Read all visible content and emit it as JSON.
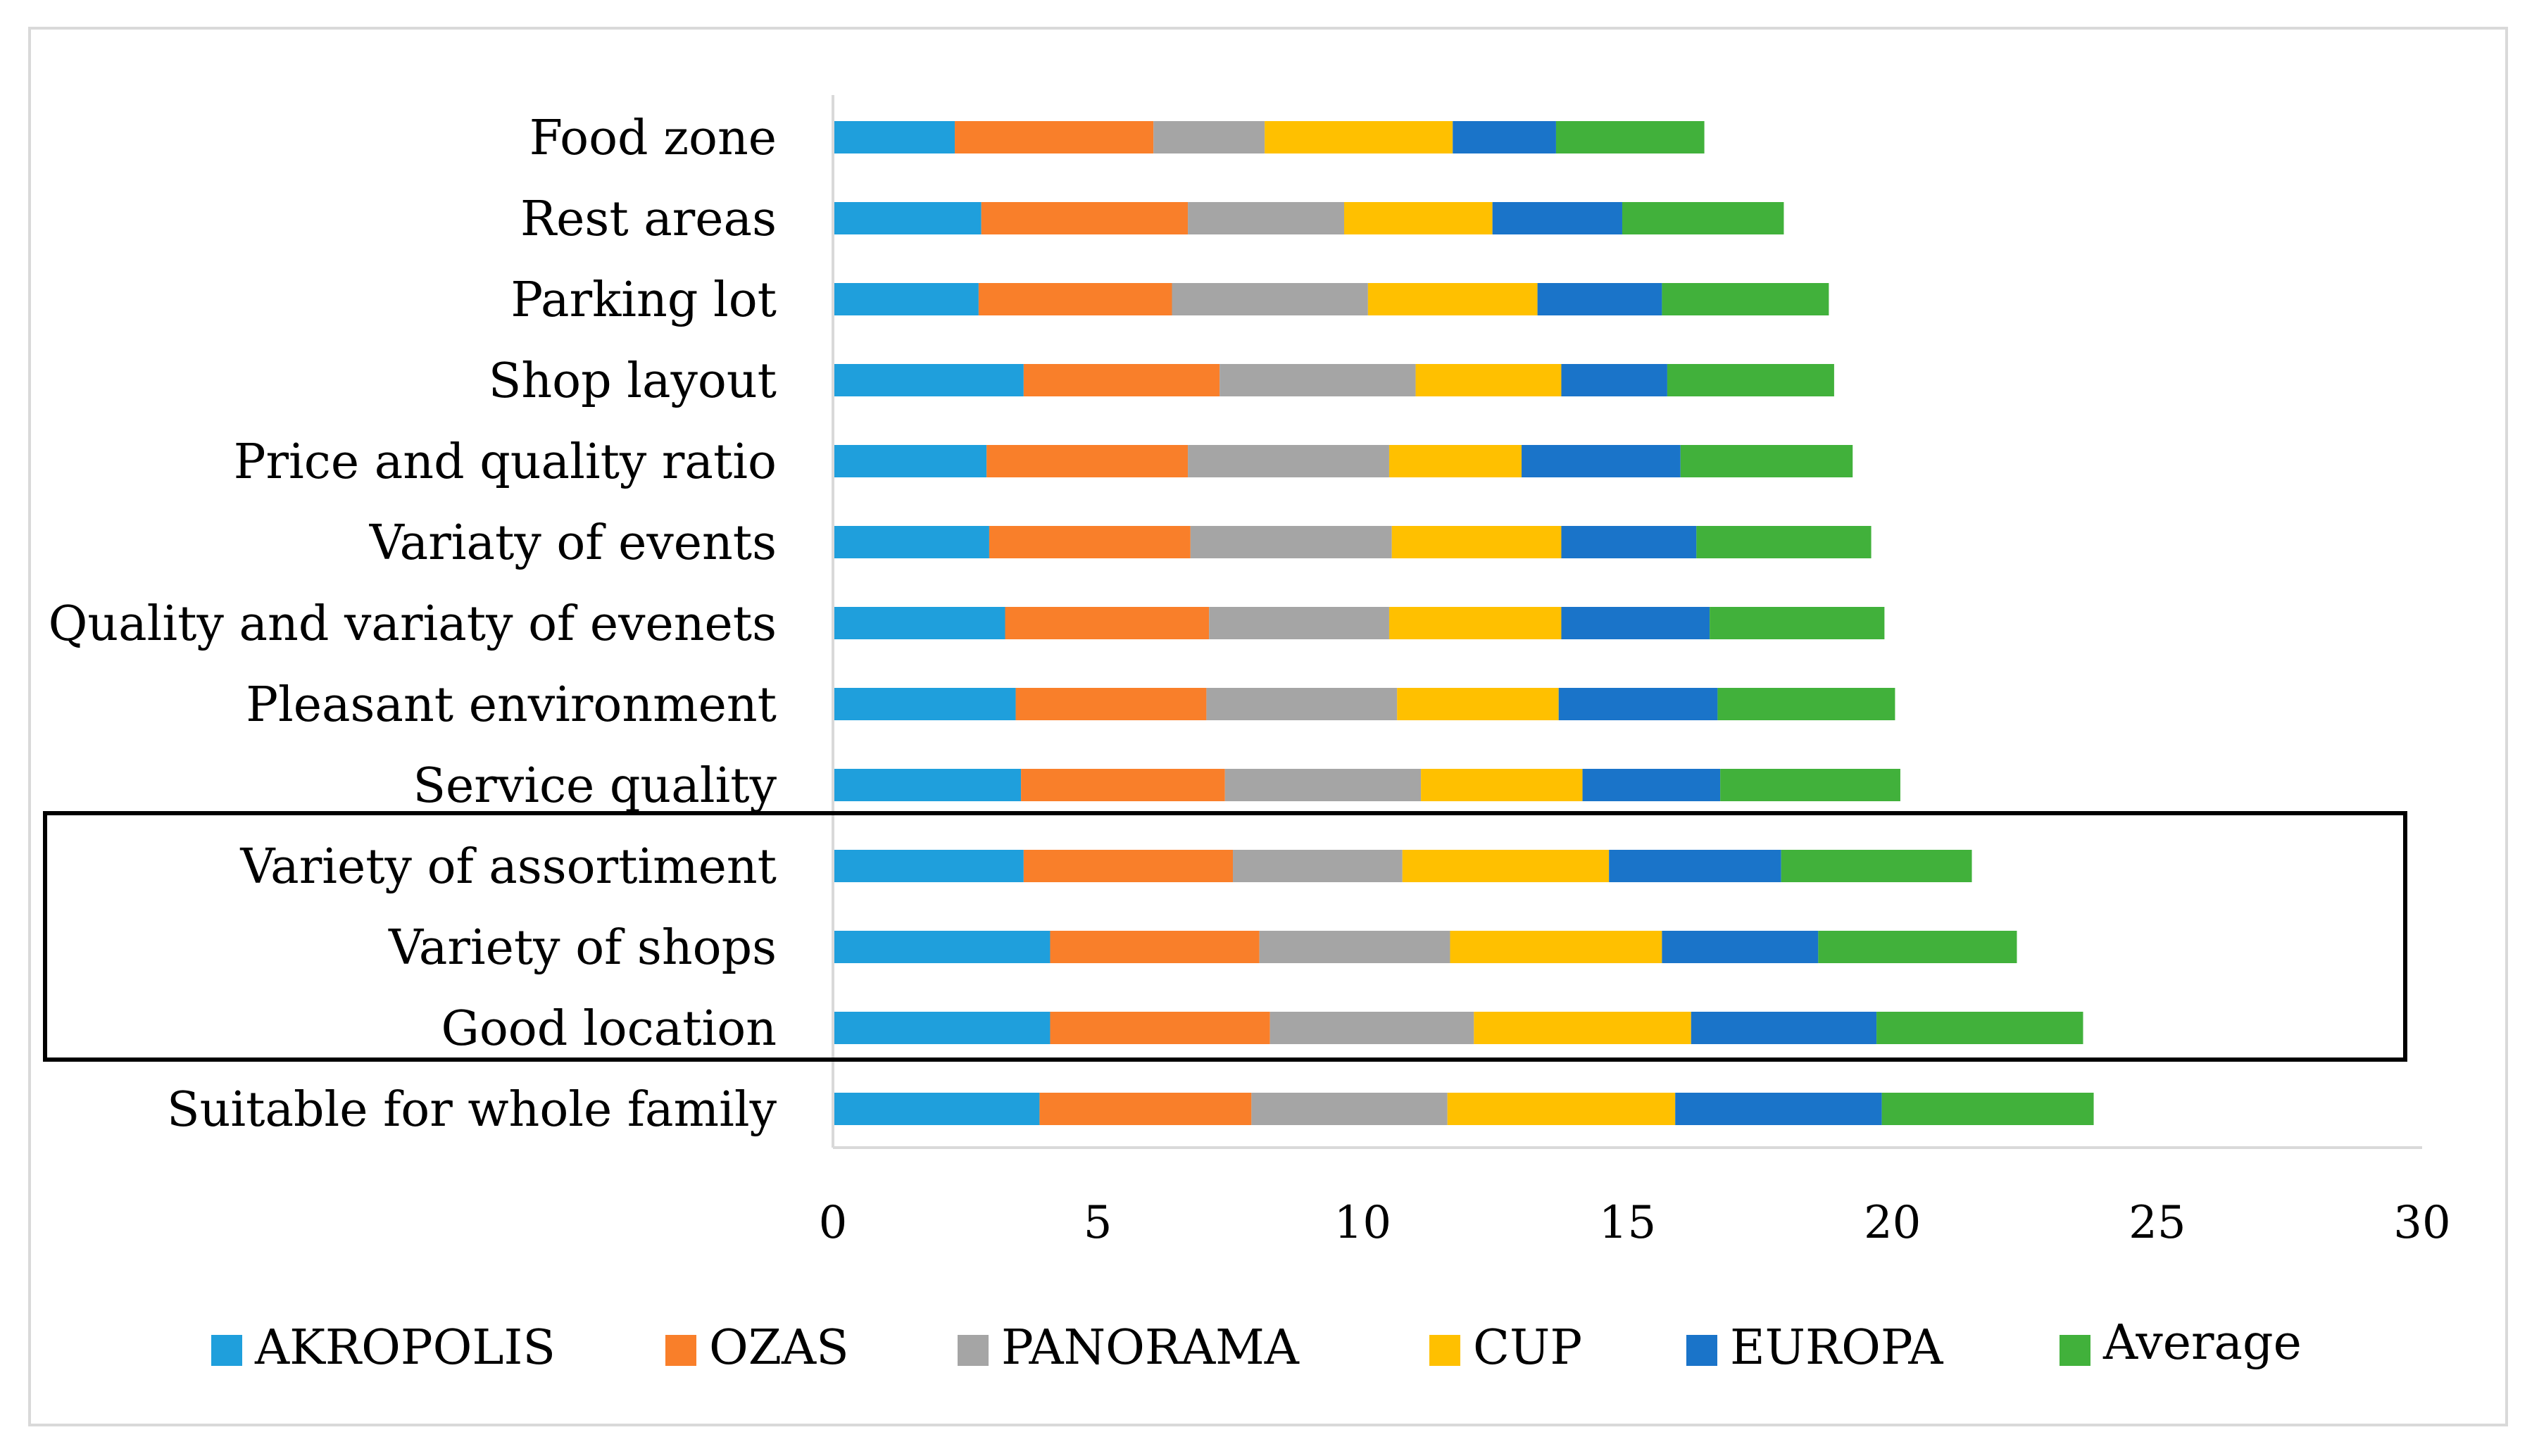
{
  "chart_data": {
    "type": "bar",
    "orientation": "horizontal",
    "stacked": true,
    "title": "",
    "xlabel": "",
    "ylabel": "",
    "xlim": [
      0,
      30
    ],
    "xticks": [
      0,
      5,
      10,
      15,
      20,
      25,
      30
    ],
    "grid": false,
    "legend_position": "bottom",
    "categories": [
      "Food zone",
      "Rest areas",
      "Parking lot",
      "Shop layout",
      "Price and quality ratio",
      "Variaty of events",
      "Quality and variaty of evenets",
      "Pleasant environment",
      "Service quality",
      "Variety of assortiment",
      "Variety of shops",
      "Good location",
      "Suitable for whole family"
    ],
    "highlighted_categories": [
      "Variety of assortiment",
      "Variety of shops",
      "Good location"
    ],
    "series": [
      {
        "name": "AKROPOLIS",
        "color": "#1f9fdc",
        "values": [
          2.3,
          2.8,
          2.75,
          3.6,
          2.9,
          2.95,
          3.25,
          3.45,
          3.55,
          3.6,
          4.1,
          4.1,
          3.9
        ]
      },
      {
        "name": "OZAS",
        "color": "#f97f2a",
        "values": [
          3.75,
          3.9,
          3.65,
          3.7,
          3.8,
          3.8,
          3.85,
          3.6,
          3.85,
          3.95,
          3.95,
          4.15,
          4.0
        ]
      },
      {
        "name": "PANORAMA",
        "color": "#a5a5a5",
        "values": [
          2.1,
          2.95,
          3.7,
          3.7,
          3.8,
          3.8,
          3.4,
          3.6,
          3.7,
          3.2,
          3.6,
          3.85,
          3.7
        ]
      },
      {
        "name": "CUP",
        "color": "#ffc000",
        "values": [
          3.55,
          2.8,
          3.2,
          2.75,
          2.5,
          3.2,
          3.25,
          3.05,
          3.05,
          3.9,
          4.0,
          4.1,
          4.3
        ]
      },
      {
        "name": "EUROPA",
        "color": "#1a74c9",
        "values": [
          1.95,
          2.45,
          2.35,
          2.0,
          3.0,
          2.55,
          2.8,
          3.0,
          2.6,
          3.25,
          2.95,
          3.5,
          3.9
        ]
      },
      {
        "name": "Average",
        "color": "#41b13b",
        "values": [
          2.8,
          3.05,
          3.15,
          3.15,
          3.25,
          3.3,
          3.3,
          3.35,
          3.4,
          3.6,
          3.75,
          3.9,
          4.0
        ]
      }
    ]
  }
}
